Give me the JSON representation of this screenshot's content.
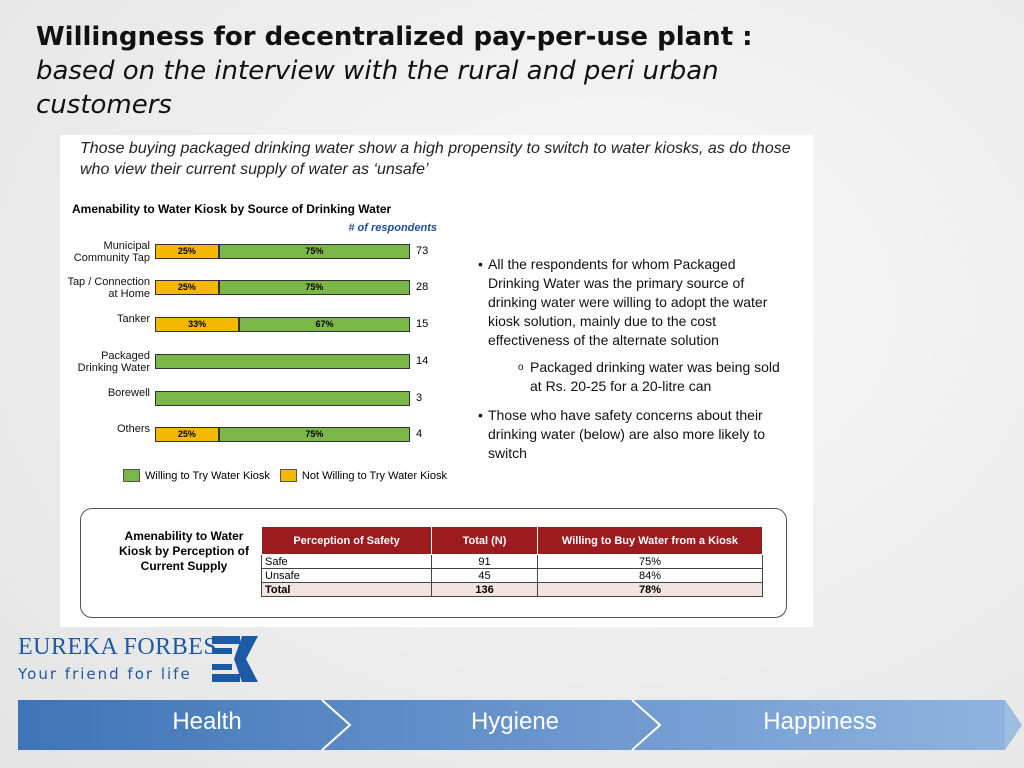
{
  "slide": {
    "title": "Willingness for decentralized pay-per-use plant :",
    "title_italic": "based on the interview with the rural and peri urban customers"
  },
  "intro": "Those buying packaged drinking water show a high propensity to switch to water kiosks, as do those who view their current supply of water as ‘unsafe’",
  "chart_data": {
    "type": "bar",
    "orientation": "horizontal",
    "stacked": true,
    "title": "Amenability to Water Kiosk by Source of Drinking Water",
    "annotation": "# of respondents",
    "categories": [
      "Municipal Community Tap",
      "Tap / Connection at Home",
      "Tanker",
      "Packaged Drinking Water",
      "Borewell",
      "Others"
    ],
    "xlim": [
      0,
      100
    ],
    "series": [
      {
        "name": "Willing to Try Water Kiosk",
        "color": "#7ab648",
        "values": [
          75,
          75,
          67,
          100,
          100,
          75
        ],
        "value_labels": [
          "75%",
          "75%",
          "67%",
          null,
          null,
          "75%"
        ]
      },
      {
        "name": "Not Willing to Try Water Kiosk",
        "color": "#f5b800",
        "values": [
          25,
          25,
          33,
          0,
          0,
          25
        ],
        "value_labels": [
          "25%",
          "25%",
          "33%",
          null,
          null,
          "25%"
        ]
      }
    ],
    "respondents": [
      73,
      28,
      15,
      14,
      3,
      4
    ],
    "legend": "bottom"
  },
  "bullets": [
    {
      "text": "All the respondents for whom Packaged Drinking Water was the primary source of drinking water were willing to adopt the water kiosk solution, mainly due to the cost effectiveness of the alternate solution",
      "sub": "Packaged drinking water was being sold at Rs. 20-25 for a 20-litre can"
    },
    {
      "text": "Those who have safety concerns about their drinking water (below) are also more likely to switch"
    }
  ],
  "table": {
    "caption": "Amenability to Water Kiosk by Perception of Current Supply",
    "header": [
      "Perception of Safety",
      "Total (N)",
      "Willing to Buy Water from a Kiosk"
    ],
    "rows": [
      [
        "Safe",
        "91",
        "75%"
      ],
      [
        "Unsafe",
        "45",
        "84%"
      ],
      [
        "Total",
        "136",
        "78%"
      ]
    ]
  },
  "logo": {
    "name": "EUREKA FORBES",
    "tagline": "Your friend for life"
  },
  "nav": [
    "Health",
    "Hygiene",
    "Happiness"
  ]
}
